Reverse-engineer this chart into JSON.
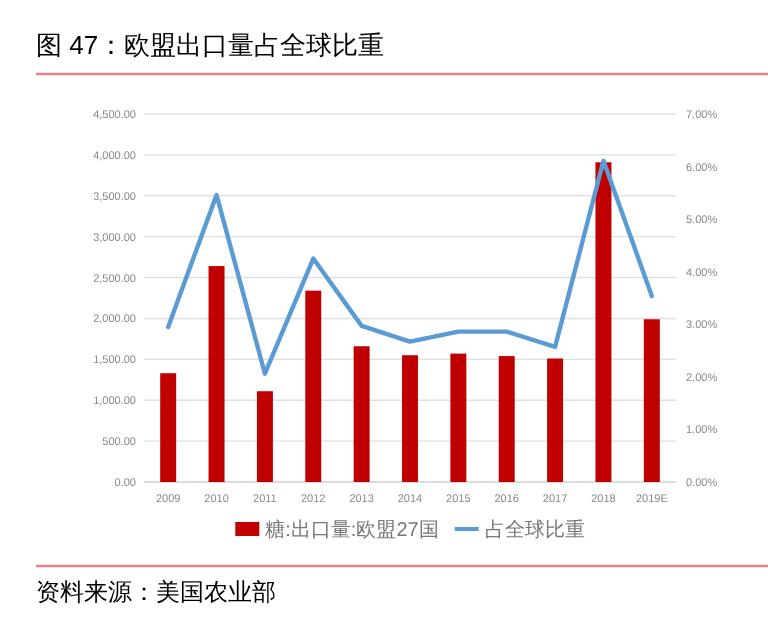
{
  "chart_data": {
    "type": "bar",
    "title": "图 47：欧盟出口量占全球比重",
    "annotations": [
      "资料来源：美国农业部"
    ],
    "categories": [
      "2009",
      "2010",
      "2011",
      "2012",
      "2013",
      "2014",
      "2015",
      "2016",
      "2017",
      "2018",
      "2019E"
    ],
    "series": [
      {
        "name": "糖:出口量:欧盟27国",
        "color": "#c00000",
        "values": [
          1330,
          2640,
          1110,
          2340,
          1660,
          1550,
          1570,
          1540,
          1510,
          3910,
          1990
        ]
      },
      {
        "name": "占全球比重",
        "color": "#5b9bd5",
        "type": "line",
        "axis": "y2",
        "values": [
          2.95,
          5.46,
          2.06,
          4.25,
          2.97,
          2.67,
          2.86,
          2.86,
          2.57,
          6.11,
          3.54
        ]
      }
    ],
    "ylim": [
      0,
      4500
    ],
    "yticks": [
      {
        "value": 0,
        "label": "0.00"
      },
      {
        "value": 500,
        "label": "500.00"
      },
      {
        "value": 1000,
        "label": "1,000.00"
      },
      {
        "value": 1500,
        "label": "1,500.00"
      },
      {
        "value": 2000,
        "label": "2,000.00"
      },
      {
        "value": 2500,
        "label": "2,500.00"
      },
      {
        "value": 3000,
        "label": "3,000.00"
      },
      {
        "value": 3500,
        "label": "3,500.00"
      },
      {
        "value": 4000,
        "label": "4,000.00"
      },
      {
        "value": 4500,
        "label": "4,500.00"
      }
    ],
    "y2lim": [
      0,
      7
    ],
    "y2ticks": [
      {
        "value": 0,
        "label": "0.00%"
      },
      {
        "value": 1,
        "label": "1.00%"
      },
      {
        "value": 2,
        "label": "2.00%"
      },
      {
        "value": 3,
        "label": "3.00%"
      },
      {
        "value": 4,
        "label": "4.00%"
      },
      {
        "value": 5,
        "label": "5.00%"
      },
      {
        "value": 6,
        "label": "6.00%"
      },
      {
        "value": 7,
        "label": "7.00%"
      }
    ],
    "grid": "y",
    "legend": "bottom"
  }
}
